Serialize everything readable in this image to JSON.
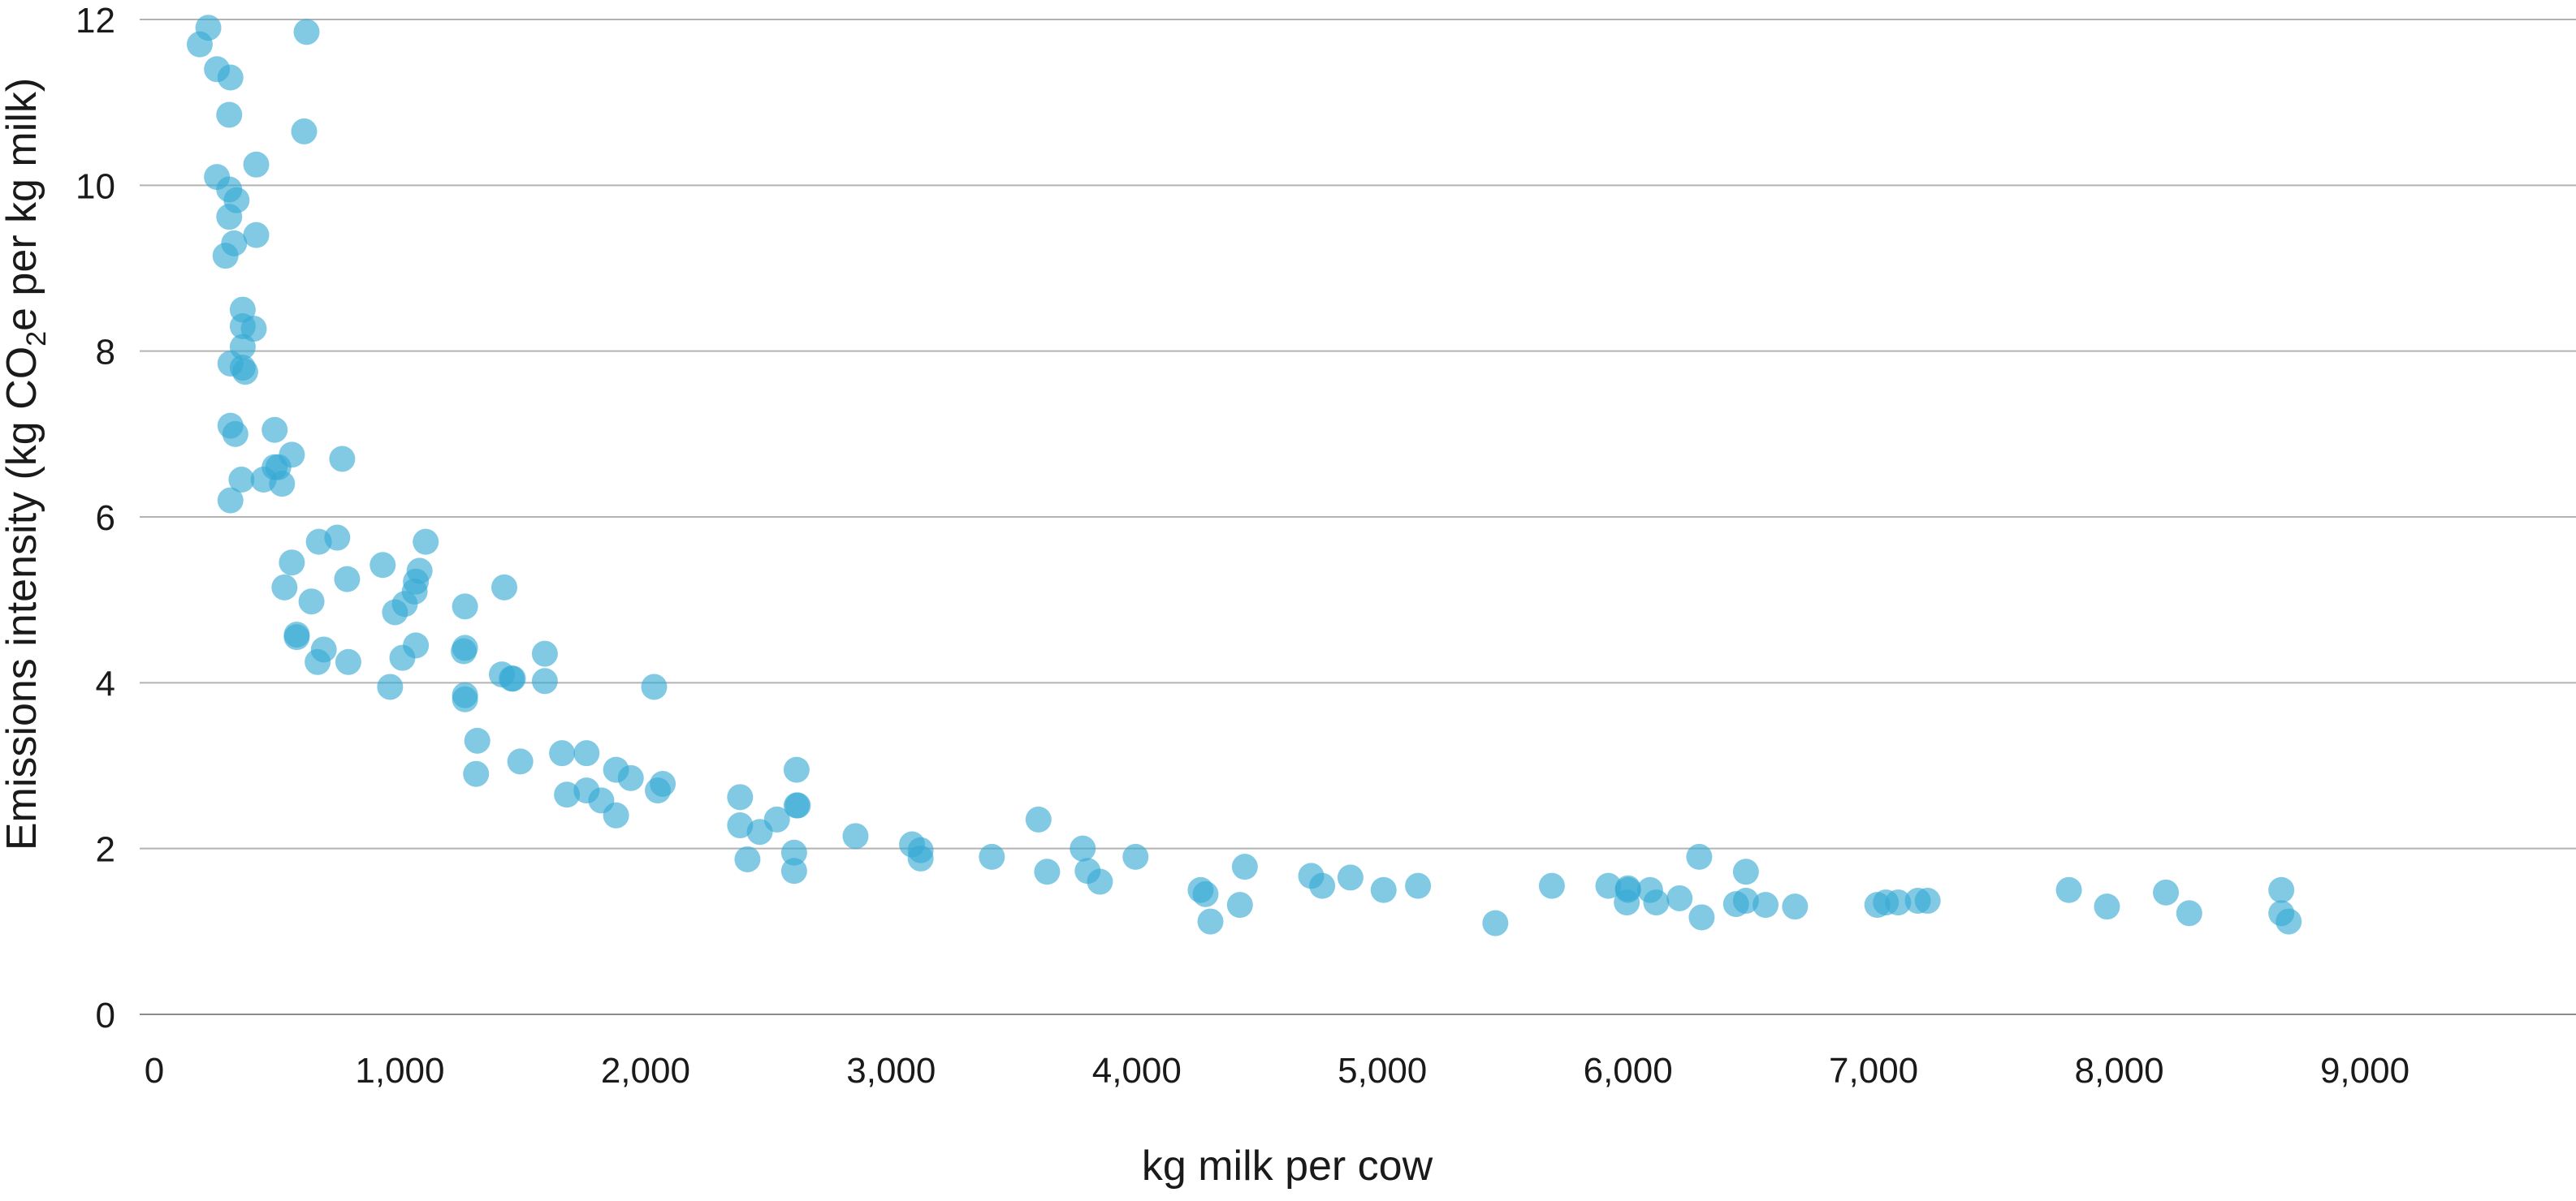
{
  "chart_data": {
    "type": "scatter",
    "xlabel": "kg milk per cow",
    "ylabel": "Emissions intensity (kg CO2e per kg milk)",
    "ylabel_parts": {
      "before": "Emissions intensity (kg CO",
      "sub": "2",
      "after": "e per kg milk)"
    },
    "xlim": [
      0,
      9700
    ],
    "ylim": [
      0,
      12
    ],
    "x_ticks": [
      0,
      1000,
      2000,
      3000,
      4000,
      5000,
      6000,
      7000,
      8000,
      9000
    ],
    "x_tick_labels": [
      "0",
      "1,000",
      "2,000",
      "3,000",
      "4,000",
      "5,000",
      "6,000",
      "7,000",
      "8,000",
      "9,000"
    ],
    "y_ticks": [
      0,
      2,
      4,
      6,
      8,
      10,
      12
    ],
    "y_tick_labels": [
      "0",
      "2",
      "4",
      "6",
      "8",
      "10",
      "12"
    ],
    "grid": "horizontal",
    "colors": {
      "point": "#35a9d3",
      "grid": "#b3b3b3",
      "text": "#1a1a1a"
    },
    "points": [
      [
        185,
        11.7
      ],
      [
        220,
        11.9
      ],
      [
        255,
        11.4
      ],
      [
        310,
        11.3
      ],
      [
        620,
        11.85
      ],
      [
        305,
        10.85
      ],
      [
        610,
        10.65
      ],
      [
        255,
        10.1
      ],
      [
        415,
        10.25
      ],
      [
        305,
        9.95
      ],
      [
        335,
        9.82
      ],
      [
        305,
        9.62
      ],
      [
        325,
        9.3
      ],
      [
        290,
        9.15
      ],
      [
        415,
        9.4
      ],
      [
        360,
        8.5
      ],
      [
        360,
        8.3
      ],
      [
        405,
        8.27
      ],
      [
        360,
        8.05
      ],
      [
        310,
        7.85
      ],
      [
        360,
        7.8
      ],
      [
        370,
        7.75
      ],
      [
        310,
        7.1
      ],
      [
        330,
        7.0
      ],
      [
        490,
        7.05
      ],
      [
        560,
        6.75
      ],
      [
        765,
        6.7
      ],
      [
        490,
        6.6
      ],
      [
        505,
        6.6
      ],
      [
        445,
        6.45
      ],
      [
        355,
        6.45
      ],
      [
        520,
        6.4
      ],
      [
        310,
        6.2
      ],
      [
        745,
        5.75
      ],
      [
        670,
        5.7
      ],
      [
        1105,
        5.7
      ],
      [
        560,
        5.45
      ],
      [
        930,
        5.42
      ],
      [
        1080,
        5.35
      ],
      [
        530,
        5.15
      ],
      [
        1065,
        5.22
      ],
      [
        1060,
        5.1
      ],
      [
        1425,
        5.15
      ],
      [
        785,
        5.25
      ],
      [
        640,
        4.98
      ],
      [
        1265,
        4.92
      ],
      [
        1020,
        4.95
      ],
      [
        980,
        4.85
      ],
      [
        580,
        4.58
      ],
      [
        580,
        4.55
      ],
      [
        690,
        4.4
      ],
      [
        665,
        4.25
      ],
      [
        790,
        4.25
      ],
      [
        1065,
        4.45
      ],
      [
        1265,
        4.42
      ],
      [
        1260,
        4.38
      ],
      [
        1010,
        4.3
      ],
      [
        1590,
        4.35
      ],
      [
        1415,
        4.1
      ],
      [
        1455,
        4.05
      ],
      [
        1460,
        4.05
      ],
      [
        1590,
        4.02
      ],
      [
        960,
        3.95
      ],
      [
        2035,
        3.95
      ],
      [
        1265,
        3.85
      ],
      [
        1265,
        3.8
      ],
      [
        1315,
        3.3
      ],
      [
        1660,
        3.15
      ],
      [
        1760,
        3.15
      ],
      [
        1490,
        3.05
      ],
      [
        1310,
        2.9
      ],
      [
        1880,
        2.95
      ],
      [
        1940,
        2.85
      ],
      [
        2070,
        2.78
      ],
      [
        2050,
        2.7
      ],
      [
        1680,
        2.65
      ],
      [
        1760,
        2.7
      ],
      [
        1820,
        2.58
      ],
      [
        1880,
        2.4
      ],
      [
        2385,
        2.62
      ],
      [
        2615,
        2.95
      ],
      [
        2615,
        2.52
      ],
      [
        2620,
        2.52
      ],
      [
        2535,
        2.35
      ],
      [
        2385,
        2.28
      ],
      [
        2465,
        2.2
      ],
      [
        2855,
        2.15
      ],
      [
        2605,
        1.95
      ],
      [
        2415,
        1.87
      ],
      [
        2605,
        1.73
      ],
      [
        3085,
        2.05
      ],
      [
        3120,
        1.98
      ],
      [
        3120,
        1.88
      ],
      [
        3410,
        1.9
      ],
      [
        3600,
        2.35
      ],
      [
        3780,
        2.0
      ],
      [
        3800,
        1.73
      ],
      [
        3635,
        1.72
      ],
      [
        3850,
        1.6
      ],
      [
        3995,
        1.9
      ],
      [
        4260,
        1.5
      ],
      [
        4280,
        1.45
      ],
      [
        4440,
        1.78
      ],
      [
        4420,
        1.32
      ],
      [
        4300,
        1.12
      ],
      [
        4710,
        1.67
      ],
      [
        4755,
        1.55
      ],
      [
        4870,
        1.65
      ],
      [
        5005,
        1.5
      ],
      [
        5145,
        1.55
      ],
      [
        5460,
        1.1
      ],
      [
        5690,
        1.55
      ],
      [
        5920,
        1.55
      ],
      [
        6000,
        1.5
      ],
      [
        6000,
        1.52
      ],
      [
        6090,
        1.5
      ],
      [
        5995,
        1.35
      ],
      [
        6115,
        1.35
      ],
      [
        6210,
        1.4
      ],
      [
        6290,
        1.9
      ],
      [
        6300,
        1.17
      ],
      [
        6440,
        1.33
      ],
      [
        6480,
        1.72
      ],
      [
        6480,
        1.37
      ],
      [
        6560,
        1.32
      ],
      [
        6680,
        1.3
      ],
      [
        7015,
        1.32
      ],
      [
        7050,
        1.35
      ],
      [
        7100,
        1.35
      ],
      [
        7180,
        1.37
      ],
      [
        7220,
        1.37
      ],
      [
        7795,
        1.5
      ],
      [
        7950,
        1.3
      ],
      [
        8190,
        1.47
      ],
      [
        8285,
        1.22
      ],
      [
        8660,
        1.5
      ],
      [
        8660,
        1.22
      ],
      [
        8690,
        1.12
      ]
    ]
  }
}
